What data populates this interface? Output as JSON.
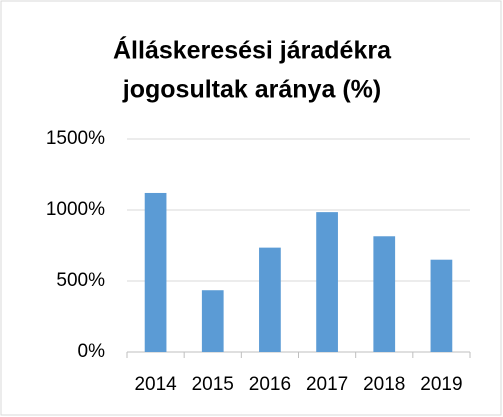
{
  "chart_data": {
    "type": "bar",
    "title": [
      "Álláskeresési járadékra",
      "jogosultak aránya (%)"
    ],
    "categories": [
      "2014",
      "2015",
      "2016",
      "2017",
      "2018",
      "2019"
    ],
    "values": [
      1120,
      435,
      735,
      985,
      815,
      650
    ],
    "color": "#5b9bd5",
    "ylim": [
      0,
      1500
    ],
    "yticks": [
      {
        "value": 0,
        "label": "0%"
      },
      {
        "value": 500,
        "label": "500%"
      },
      {
        "value": 1000,
        "label": "1000%"
      },
      {
        "value": 1500,
        "label": "1500%"
      }
    ],
    "grid": true
  }
}
